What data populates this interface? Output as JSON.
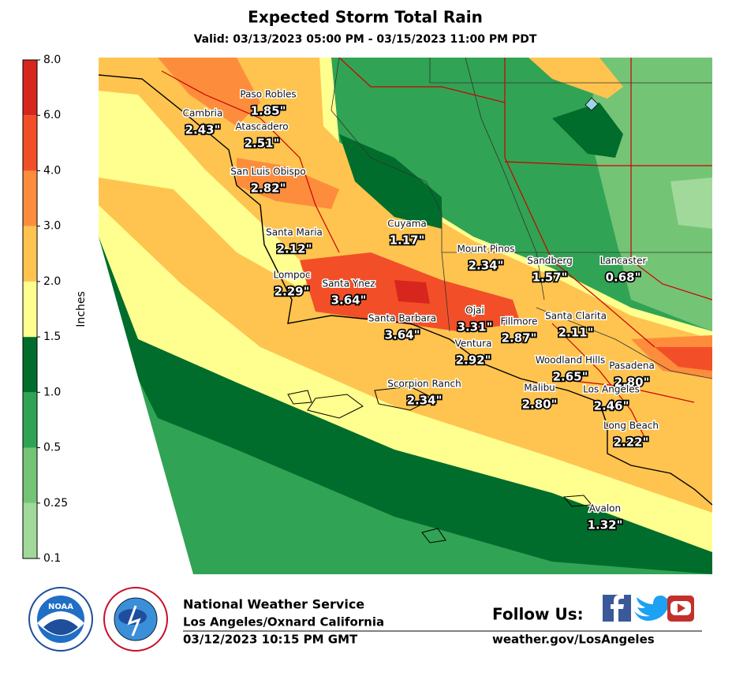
{
  "header": {
    "title": "Expected Storm Total Rain",
    "subtitle": "Valid: 03/13/2023 05:00 PM - 03/15/2023 11:00 PM PDT"
  },
  "legend": {
    "label": "Inches",
    "ticks": [
      "0.1",
      "0.25",
      "0.5",
      "1.0",
      "1.5",
      "2.0",
      "3.0",
      "4.0",
      "6.0",
      "8.0"
    ],
    "colors": [
      "#a1d99b",
      "#74c476",
      "#31a354",
      "#006d2c",
      "#ffff8f",
      "#fec44f",
      "#fd8d3c",
      "#f24f28",
      "#d7261e"
    ]
  },
  "cities": [
    {
      "name": "Paso Robles",
      "value": "1.85\""
    },
    {
      "name": "Cambria",
      "value": "2.43\""
    },
    {
      "name": "Atascadero",
      "value": "2.51\""
    },
    {
      "name": "San Luis Obispo",
      "value": "2.82\""
    },
    {
      "name": "Cuyama",
      "value": "1.17\""
    },
    {
      "name": "Santa Maria",
      "value": "2.12\""
    },
    {
      "name": "Mount Pinos",
      "value": "2.34\""
    },
    {
      "name": "Sandberg",
      "value": "1.57\""
    },
    {
      "name": "Lancaster",
      "value": "0.68\""
    },
    {
      "name": "Lompoc",
      "value": "2.29\""
    },
    {
      "name": "Santa Ynez",
      "value": "3.64\""
    },
    {
      "name": "Ojai",
      "value": "3.31\""
    },
    {
      "name": "Santa Barbara",
      "value": "3.64\""
    },
    {
      "name": "Fillmore",
      "value": "2.87\""
    },
    {
      "name": "Santa Clarita",
      "value": "2.11\""
    },
    {
      "name": "Ventura",
      "value": "2.92\""
    },
    {
      "name": "Woodland Hills",
      "value": "2.65\""
    },
    {
      "name": "Pasadena",
      "value": "2.80\""
    },
    {
      "name": "Scorpion Ranch",
      "value": "2.34\""
    },
    {
      "name": "Malibu",
      "value": "2.80\""
    },
    {
      "name": "Los Angeles",
      "value": "2.46\""
    },
    {
      "name": "Long Beach",
      "value": "2.22\""
    },
    {
      "name": "Avalon",
      "value": "1.32\""
    }
  ],
  "footer": {
    "agency": "National Weather Service",
    "office": "Los Angeles/Oxnard California",
    "issued": "03/12/2023 10:15 PM GMT",
    "follow": "Follow Us:",
    "url": "weather.gov/LosAngeles"
  },
  "logos": {
    "noaa": "NOAA"
  }
}
